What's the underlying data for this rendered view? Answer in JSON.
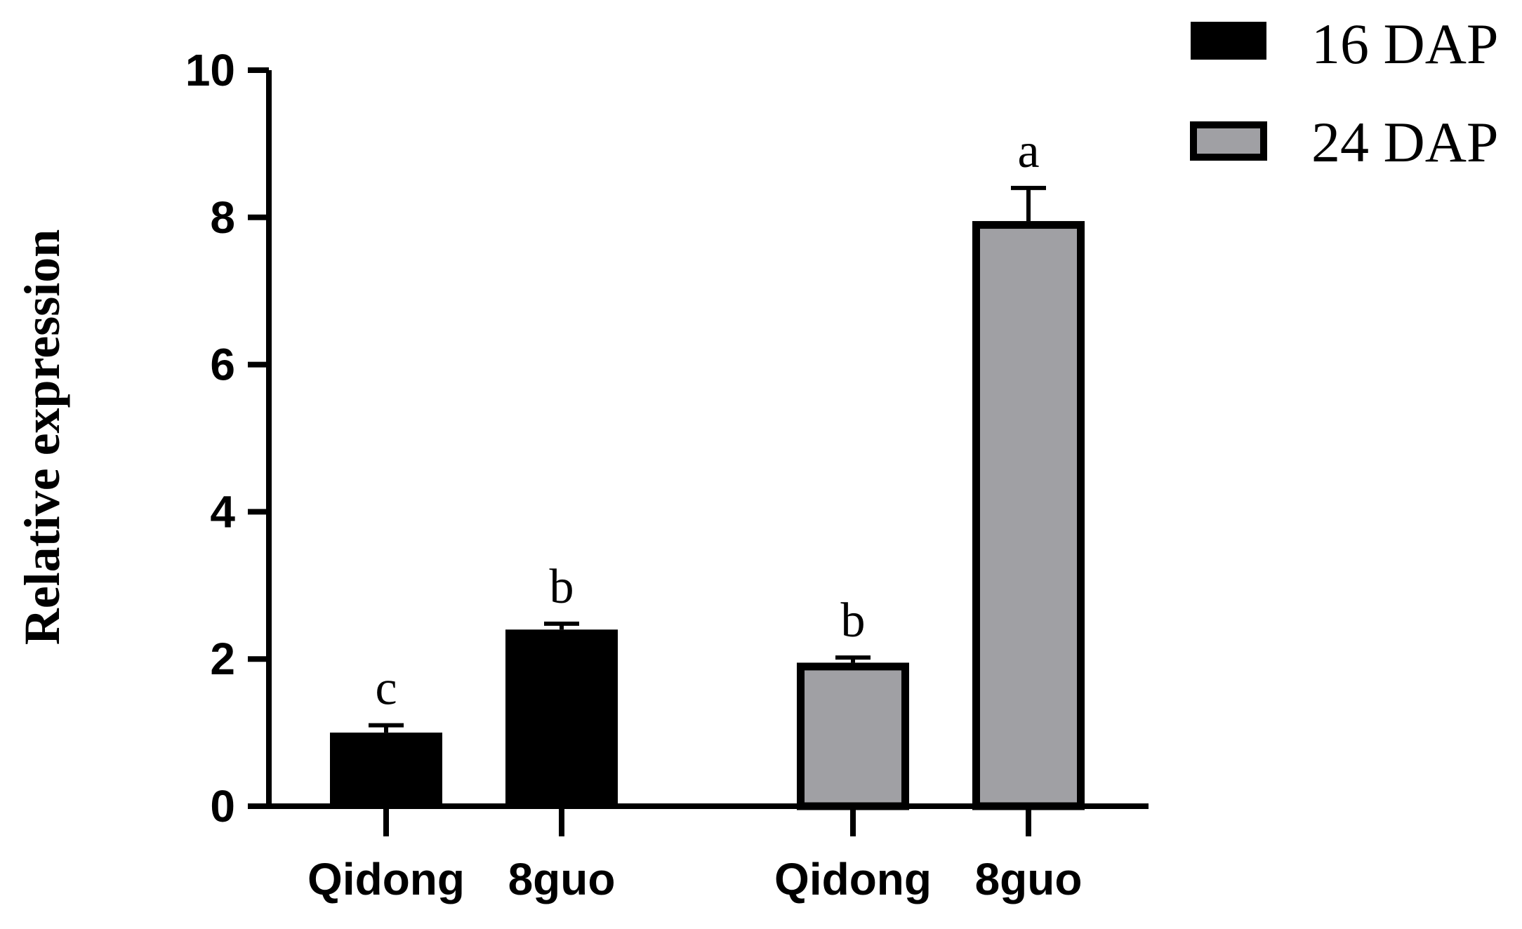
{
  "chart_data": {
    "type": "bar",
    "ylabel": "Relative expression",
    "xlabel": "",
    "ylim": [
      0,
      10
    ],
    "yticks": [
      0,
      2,
      4,
      6,
      8,
      10
    ],
    "x_tick_labels": [
      "Qidong",
      "8guo",
      "Qidong",
      "8guo"
    ],
    "series": [
      {
        "name": "16 DAP",
        "color": "#000000",
        "categories": [
          "Qidong",
          "8guo"
        ],
        "values": [
          1.0,
          2.4
        ],
        "errors": [
          0.1,
          0.08
        ],
        "letters": [
          "c",
          "b"
        ]
      },
      {
        "name": "24 DAP",
        "color": "#a0a0a4",
        "categories": [
          "Qidong",
          "8guo"
        ],
        "values": [
          1.95,
          7.95
        ],
        "errors": [
          0.07,
          0.45
        ],
        "letters": [
          "b",
          "a"
        ]
      }
    ],
    "legend": {
      "position": "top-right"
    }
  }
}
